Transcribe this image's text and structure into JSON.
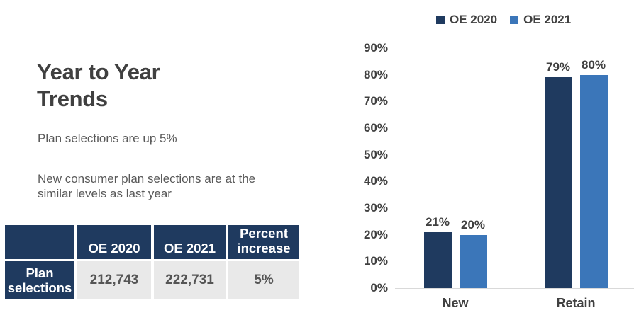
{
  "title": "Year to Year Trends",
  "subtitle1": "Plan selections are up 5%",
  "subtitle2": "New consumer plan selections are at the similar levels as last year",
  "table": {
    "headers": [
      "",
      "OE 2020",
      "OE 2021",
      "Percent increase"
    ],
    "row_label": "Plan selections",
    "values": [
      "212,743",
      "222,731",
      "5%"
    ]
  },
  "chart_data": {
    "type": "bar",
    "title": "",
    "categories": [
      "New",
      "Retain"
    ],
    "series": [
      {
        "name": "OE 2020",
        "color": "#1F3A5F",
        "values": [
          21,
          79
        ]
      },
      {
        "name": "OE 2021",
        "color": "#3B76B9",
        "values": [
          20,
          80
        ]
      }
    ],
    "data_labels": [
      [
        "21%",
        "79%"
      ],
      [
        "20%",
        "80%"
      ]
    ],
    "xlabel": "",
    "ylabel": "",
    "ylim": [
      0,
      90
    ],
    "ytick_step": 10,
    "ytick_suffix": "%",
    "grid": false,
    "legend_position": "top"
  },
  "colors": {
    "navy": "#1F3A5F",
    "blue": "#3B76B9",
    "heading_text": "#404040",
    "body_text": "#595959",
    "cell_bg": "#E9E9E9",
    "axis_line": "#D9D9D9"
  }
}
